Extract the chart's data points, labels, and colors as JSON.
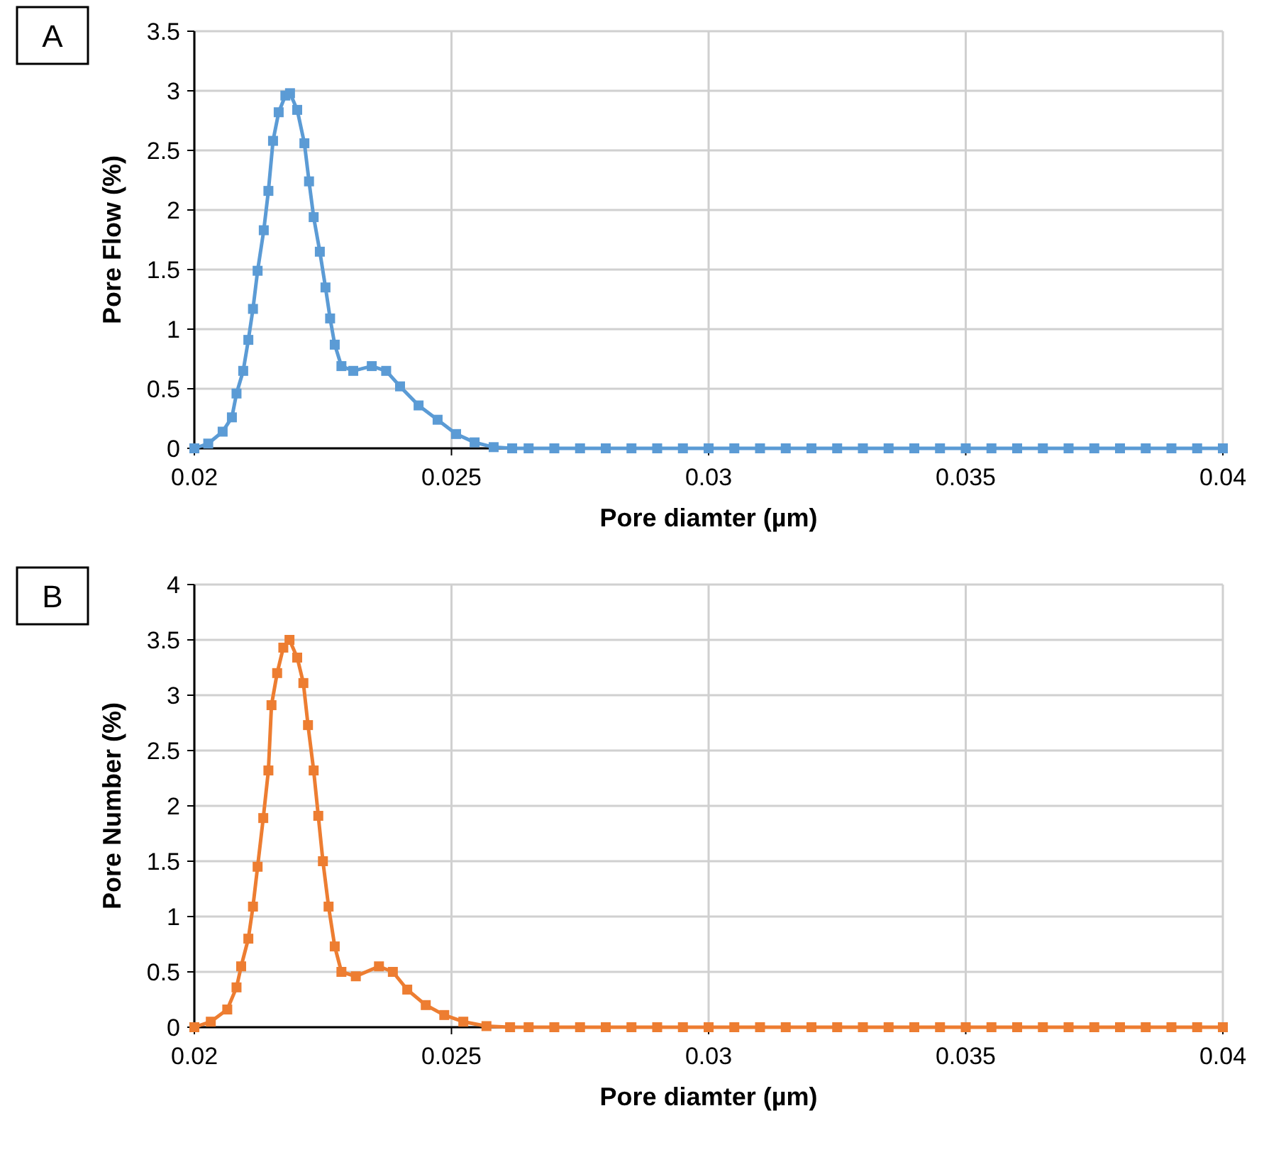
{
  "chart_data": [
    {
      "type": "line",
      "xlabel": "Pore diamter (µm)",
      "ylabel": "Pore Flow (%)",
      "annotations": [
        "A"
      ],
      "xlim": [
        0.02,
        0.04
      ],
      "xticks": [
        0.02,
        0.025,
        0.03,
        0.035,
        0.04
      ],
      "ylim": [
        0,
        3.5
      ],
      "yticks": [
        0,
        0.5,
        1,
        1.5,
        2,
        2.5,
        3,
        3.5
      ],
      "grid": true,
      "marker": "square",
      "line_style": "solid",
      "series": [
        {
          "color": "#5b9bd5",
          "x": [
            0.02,
            0.02027,
            0.02055,
            0.02073,
            0.02082,
            0.02095,
            0.02105,
            0.02114,
            0.02123,
            0.02135,
            0.02144,
            0.02153,
            0.02164,
            0.02177,
            0.02186,
            0.022,
            0.02214,
            0.02223,
            0.02232,
            0.02244,
            0.02255,
            0.02264,
            0.02273,
            0.02286,
            0.02309,
            0.02345,
            0.02373,
            0.024,
            0.02436,
            0.02473,
            0.02509,
            0.02545,
            0.02582,
            0.02618,
            0.0265,
            0.027,
            0.0275,
            0.028,
            0.0285,
            0.029,
            0.0295,
            0.03,
            0.0305,
            0.031,
            0.0315,
            0.032,
            0.0325,
            0.033,
            0.0335,
            0.034,
            0.0345,
            0.035,
            0.0355,
            0.036,
            0.0365,
            0.037,
            0.0375,
            0.038,
            0.0385,
            0.039,
            0.0395,
            0.04
          ],
          "values": [
            0,
            0.04,
            0.14,
            0.26,
            0.46,
            0.65,
            0.91,
            1.17,
            1.49,
            1.83,
            2.16,
            2.58,
            2.82,
            2.96,
            2.98,
            2.84,
            2.56,
            2.24,
            1.94,
            1.65,
            1.35,
            1.09,
            0.87,
            0.69,
            0.65,
            0.69,
            0.65,
            0.52,
            0.36,
            0.24,
            0.12,
            0.05,
            0.01,
            0,
            0,
            0,
            0,
            0,
            0,
            0,
            0,
            0,
            0,
            0,
            0,
            0,
            0,
            0,
            0,
            0,
            0,
            0,
            0,
            0,
            0,
            0,
            0,
            0,
            0,
            0,
            0,
            0
          ]
        }
      ]
    },
    {
      "type": "line",
      "xlabel": "Pore diamter (µm)",
      "ylabel": "Pore Number (%)",
      "annotations": [
        "B"
      ],
      "xlim": [
        0.02,
        0.04
      ],
      "xticks": [
        0.02,
        0.025,
        0.03,
        0.035,
        0.04
      ],
      "ylim": [
        0,
        4
      ],
      "yticks": [
        0,
        0.5,
        1,
        1.5,
        2,
        2.5,
        3,
        3.5,
        4
      ],
      "grid": true,
      "marker": "square",
      "line_style": "solid",
      "series": [
        {
          "color": "#ed7d31",
          "x": [
            0.02,
            0.02032,
            0.02064,
            0.02082,
            0.02091,
            0.02105,
            0.02114,
            0.02123,
            0.02134,
            0.02144,
            0.0215,
            0.02161,
            0.02173,
            0.02185,
            0.022,
            0.02212,
            0.02221,
            0.02232,
            0.02241,
            0.0225,
            0.02261,
            0.02273,
            0.02286,
            0.02314,
            0.02359,
            0.02386,
            0.02414,
            0.0245,
            0.02486,
            0.02523,
            0.02568,
            0.02614,
            0.0265,
            0.027,
            0.0275,
            0.028,
            0.0285,
            0.029,
            0.0295,
            0.03,
            0.0305,
            0.031,
            0.0315,
            0.032,
            0.0325,
            0.033,
            0.0335,
            0.034,
            0.0345,
            0.035,
            0.0355,
            0.036,
            0.0365,
            0.037,
            0.0375,
            0.038,
            0.0385,
            0.039,
            0.0395,
            0.04
          ],
          "values": [
            0,
            0.05,
            0.16,
            0.36,
            0.55,
            0.8,
            1.09,
            1.45,
            1.89,
            2.32,
            2.91,
            3.2,
            3.43,
            3.5,
            3.34,
            3.11,
            2.73,
            2.32,
            1.91,
            1.5,
            1.09,
            0.73,
            0.5,
            0.46,
            0.55,
            0.5,
            0.34,
            0.2,
            0.11,
            0.05,
            0.01,
            0,
            0,
            0,
            0,
            0,
            0,
            0,
            0,
            0,
            0,
            0,
            0,
            0,
            0,
            0,
            0,
            0,
            0,
            0,
            0,
            0,
            0,
            0,
            0,
            0,
            0,
            0,
            0,
            0
          ]
        }
      ]
    }
  ]
}
